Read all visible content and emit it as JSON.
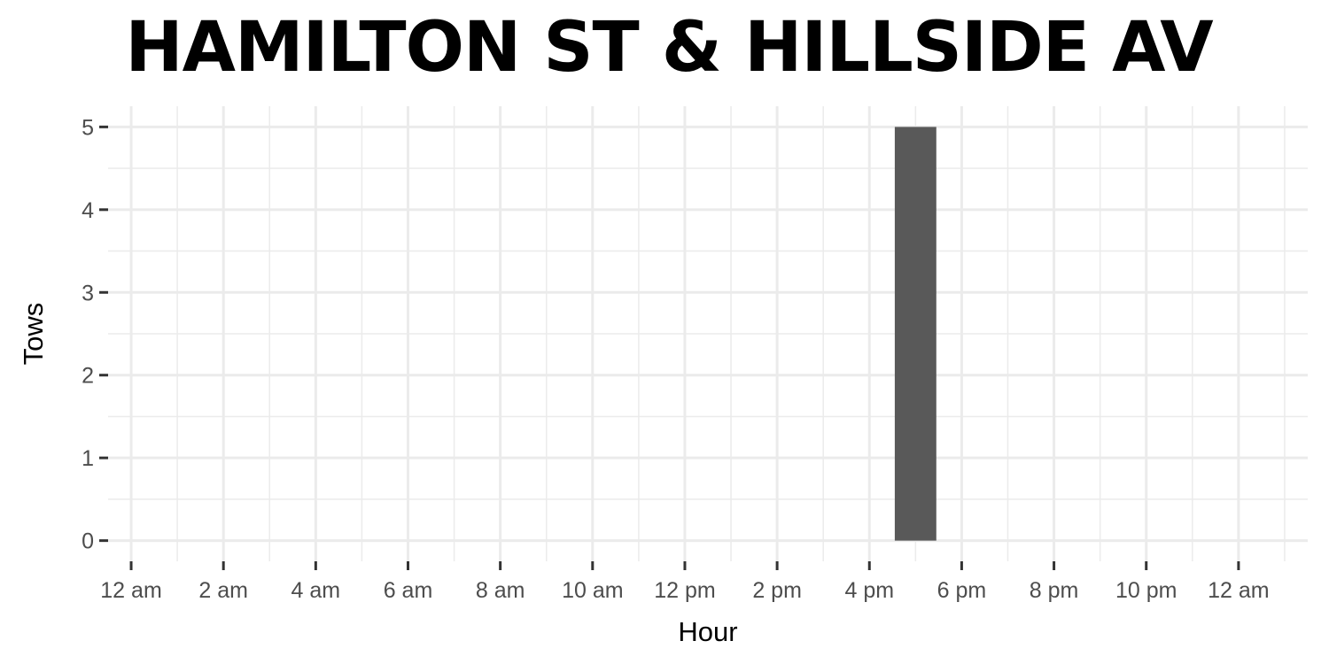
{
  "chart_data": {
    "type": "bar",
    "title": "HAMILTON ST & HILLSIDE AV",
    "xlabel": "Hour",
    "ylabel": "Tows",
    "x_ticks": [
      {
        "hour": 0,
        "label": "12 am"
      },
      {
        "hour": 2,
        "label": "2 am"
      },
      {
        "hour": 4,
        "label": "4 am"
      },
      {
        "hour": 6,
        "label": "6 am"
      },
      {
        "hour": 8,
        "label": "8 am"
      },
      {
        "hour": 10,
        "label": "10 am"
      },
      {
        "hour": 12,
        "label": "12 pm"
      },
      {
        "hour": 14,
        "label": "2 pm"
      },
      {
        "hour": 16,
        "label": "4 pm"
      },
      {
        "hour": 18,
        "label": "6 pm"
      },
      {
        "hour": 20,
        "label": "8 pm"
      },
      {
        "hour": 22,
        "label": "10 pm"
      },
      {
        "hour": 24,
        "label": "12 am"
      }
    ],
    "y_ticks": [
      0,
      1,
      2,
      3,
      4,
      5
    ],
    "xlim": [
      -0.5,
      25.5
    ],
    "ylim": [
      -0.25,
      5.25
    ],
    "bars": [
      {
        "hour": 17,
        "tows": 5
      }
    ],
    "bar_color": "#595959",
    "grid": true,
    "grid_color": "#ebebeb",
    "tick_color": "#333333"
  }
}
